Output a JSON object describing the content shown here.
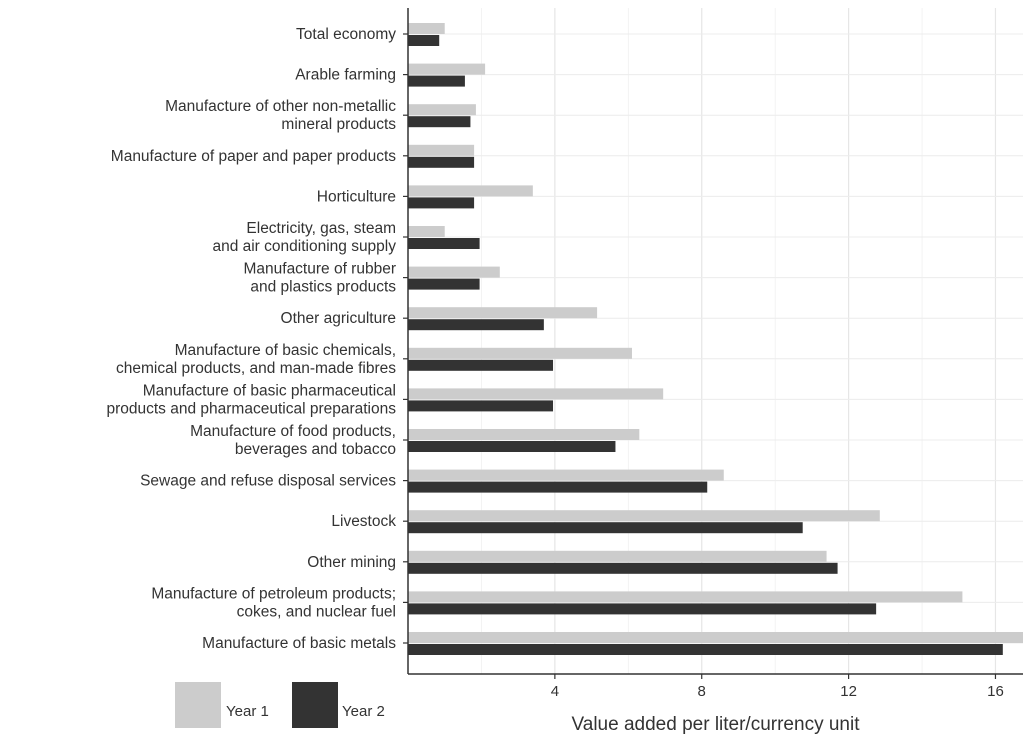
{
  "chart_data": {
    "type": "bar",
    "orientation": "horizontal",
    "categories": [
      [
        "Total economy"
      ],
      [
        "Arable farming"
      ],
      [
        "Manufacture of other non-metallic",
        "mineral products"
      ],
      [
        "Manufacture of paper and paper products"
      ],
      [
        "Horticulture"
      ],
      [
        "Electricity, gas, steam",
        "and air conditioning supply"
      ],
      [
        "Manufacture of rubber",
        "and plastics products"
      ],
      [
        "Other agriculture"
      ],
      [
        "Manufacture of basic chemicals,",
        "chemical products, and man-made fibres"
      ],
      [
        "Manufacture of basic pharmaceutical",
        "products and pharmaceutical preparations"
      ],
      [
        "Manufacture of food products,",
        "beverages and tobacco"
      ],
      [
        "Sewage and refuse disposal services"
      ],
      [
        "Livestock"
      ],
      [
        "Other mining"
      ],
      [
        "Manufacture of petroleum products;",
        "cokes, and nuclear fuel"
      ],
      [
        "Manufacture of basic metals"
      ]
    ],
    "series": [
      {
        "name": "Year 1",
        "color": "#cccccc",
        "values": [
          1.0,
          2.1,
          1.85,
          1.8,
          3.4,
          1.0,
          2.5,
          5.15,
          6.1,
          6.95,
          6.3,
          8.6,
          12.85,
          11.4,
          15.1,
          16.75
        ]
      },
      {
        "name": "Year 2",
        "color": "#333333",
        "values": [
          0.85,
          1.55,
          1.7,
          1.8,
          1.8,
          1.95,
          1.95,
          3.7,
          3.95,
          3.95,
          5.65,
          8.15,
          10.75,
          11.7,
          12.75,
          16.2
        ]
      }
    ],
    "xlabel": "Value added per liter/currency unit",
    "ylabel": "",
    "xlim": [
      0,
      16.75
    ],
    "xticks": [
      4,
      8,
      12,
      16
    ],
    "grid": true,
    "legend_position": "bottom-left"
  }
}
